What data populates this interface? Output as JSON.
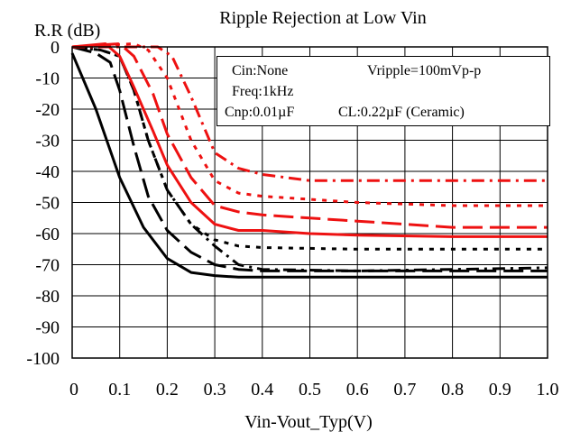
{
  "chart_data": {
    "type": "line",
    "title": "Ripple Rejection at Low Vin",
    "ylabel": "R.R (dB)",
    "xlabel": "Vin-Vout_Typ(V)",
    "xlim": [
      0,
      1.0
    ],
    "ylim": [
      -100,
      0
    ],
    "grid": true,
    "x_ticks": [
      "0",
      "0.1",
      "0.2",
      "0.3",
      "0.4",
      "0.5",
      "0.6",
      "0.7",
      "0.8",
      "0.9",
      "1.0"
    ],
    "y_ticks": [
      "0",
      "-10",
      "-20",
      "-30",
      "-40",
      "-50",
      "-60",
      "-70",
      "-80",
      "-90",
      "-100"
    ],
    "annotation": {
      "line1_left": "Cin:None",
      "line1_right": "Vripple=100mVp-p",
      "line2": "Freq:1kHz",
      "line3_left": "Cnp:0.01µF",
      "line3_right": "CL:0.22µF (Ceramic)"
    },
    "colors": {
      "black": "#000000",
      "red": "#ee1111"
    },
    "series": [
      {
        "color": "black",
        "dash": "solid",
        "points": [
          [
            0,
            -2
          ],
          [
            0.05,
            -20
          ],
          [
            0.1,
            -42
          ],
          [
            0.15,
            -58
          ],
          [
            0.2,
            -68
          ],
          [
            0.25,
            -72.5
          ],
          [
            0.3,
            -73.5
          ],
          [
            0.35,
            -74
          ],
          [
            0.4,
            -74
          ],
          [
            0.5,
            -74
          ],
          [
            0.6,
            -74
          ],
          [
            0.7,
            -74
          ],
          [
            0.8,
            -74
          ],
          [
            0.9,
            -74
          ],
          [
            1.0,
            -74
          ]
        ]
      },
      {
        "color": "black",
        "dash": "longdash",
        "points": [
          [
            0,
            0
          ],
          [
            0.05,
            -2
          ],
          [
            0.08,
            -5
          ],
          [
            0.1,
            -14
          ],
          [
            0.13,
            -32
          ],
          [
            0.16,
            -48
          ],
          [
            0.2,
            -59
          ],
          [
            0.25,
            -66
          ],
          [
            0.3,
            -70
          ],
          [
            0.35,
            -71.5
          ],
          [
            0.4,
            -72
          ],
          [
            0.6,
            -72
          ],
          [
            0.8,
            -72
          ],
          [
            1.0,
            -72
          ]
        ]
      },
      {
        "color": "black",
        "dash": "dot",
        "points": [
          [
            0,
            0
          ],
          [
            0.06,
            -1
          ],
          [
            0.1,
            -3
          ],
          [
            0.13,
            -14
          ],
          [
            0.16,
            -30
          ],
          [
            0.2,
            -46
          ],
          [
            0.25,
            -57
          ],
          [
            0.3,
            -62
          ],
          [
            0.35,
            -64
          ],
          [
            0.4,
            -64.5
          ],
          [
            0.6,
            -65
          ],
          [
            0.8,
            -65
          ],
          [
            1.0,
            -65
          ]
        ]
      },
      {
        "color": "black",
        "dash": "dashdot",
        "points": [
          [
            0,
            0
          ],
          [
            0.06,
            -1
          ],
          [
            0.1,
            -3
          ],
          [
            0.13,
            -14
          ],
          [
            0.16,
            -30
          ],
          [
            0.2,
            -46
          ],
          [
            0.25,
            -57
          ],
          [
            0.3,
            -64
          ],
          [
            0.35,
            -70
          ],
          [
            0.4,
            -71.5
          ],
          [
            0.6,
            -72
          ],
          [
            0.8,
            -71.5
          ],
          [
            1.0,
            -71
          ]
        ]
      },
      {
        "color": "red",
        "dash": "solid",
        "points": [
          [
            0,
            0
          ],
          [
            0.07,
            1
          ],
          [
            0.1,
            -3
          ],
          [
            0.13,
            -13
          ],
          [
            0.17,
            -27
          ],
          [
            0.2,
            -38
          ],
          [
            0.25,
            -50
          ],
          [
            0.3,
            -57
          ],
          [
            0.35,
            -59
          ],
          [
            0.4,
            -59
          ],
          [
            0.5,
            -60
          ],
          [
            0.6,
            -60.5
          ],
          [
            0.8,
            -61
          ],
          [
            1.0,
            -61
          ]
        ]
      },
      {
        "color": "red",
        "dash": "longdash",
        "points": [
          [
            0,
            0
          ],
          [
            0.1,
            1
          ],
          [
            0.13,
            -3
          ],
          [
            0.17,
            -15
          ],
          [
            0.2,
            -28
          ],
          [
            0.25,
            -42
          ],
          [
            0.3,
            -51
          ],
          [
            0.35,
            -53
          ],
          [
            0.4,
            -54
          ],
          [
            0.5,
            -55
          ],
          [
            0.6,
            -56
          ],
          [
            0.7,
            -57
          ],
          [
            0.8,
            -58
          ],
          [
            1.0,
            -58
          ]
        ]
      },
      {
        "color": "red",
        "dash": "dot",
        "points": [
          [
            0,
            0
          ],
          [
            0.13,
            1
          ],
          [
            0.16,
            -1
          ],
          [
            0.2,
            -10
          ],
          [
            0.25,
            -30
          ],
          [
            0.3,
            -43
          ],
          [
            0.35,
            -47
          ],
          [
            0.4,
            -48
          ],
          [
            0.5,
            -49
          ],
          [
            0.6,
            -50
          ],
          [
            0.8,
            -51
          ],
          [
            1.0,
            -51
          ]
        ]
      },
      {
        "color": "red",
        "dash": "dashdot",
        "points": [
          [
            0,
            0
          ],
          [
            0.18,
            0
          ],
          [
            0.21,
            -3
          ],
          [
            0.25,
            -16
          ],
          [
            0.3,
            -34
          ],
          [
            0.35,
            -39
          ],
          [
            0.4,
            -41
          ],
          [
            0.5,
            -43
          ],
          [
            0.6,
            -43
          ],
          [
            0.8,
            -43
          ],
          [
            1.0,
            -43
          ]
        ]
      }
    ]
  }
}
